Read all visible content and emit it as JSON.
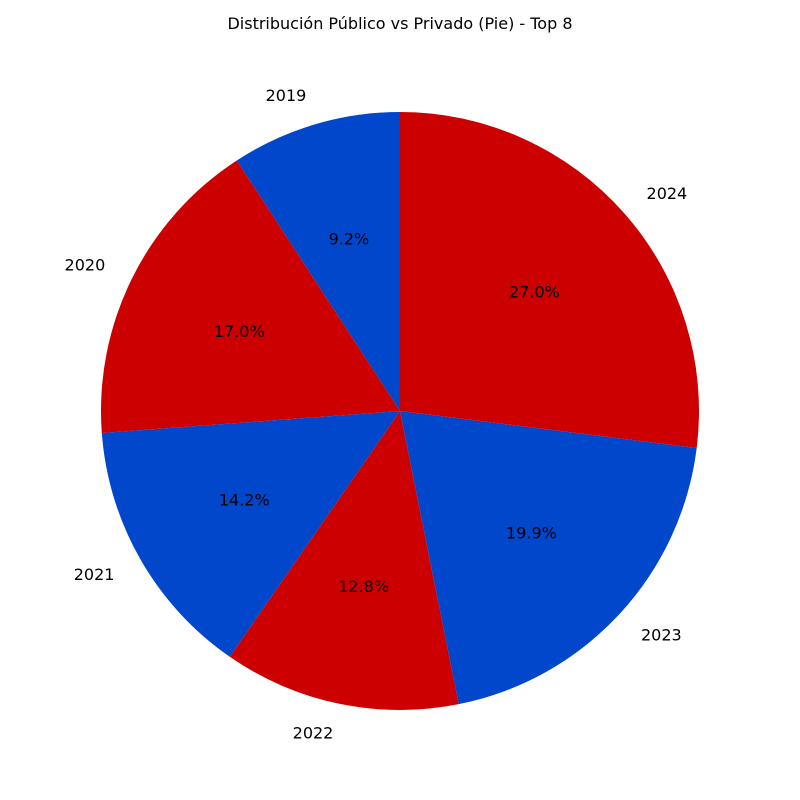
{
  "chart_data": {
    "type": "pie",
    "title": "Distribución Público vs Privado (Pie) - Top 8",
    "categories": [
      "2019",
      "2020",
      "2021",
      "2022",
      "2023",
      "2024"
    ],
    "values": [
      9.2,
      17.0,
      14.2,
      12.8,
      19.9,
      27.0
    ],
    "value_labels": [
      "9.2%",
      "17.0%",
      "14.2%",
      "12.8%",
      "19.9%",
      "27.0%"
    ],
    "colors": [
      "#0047cc",
      "#cc0000",
      "#0047cc",
      "#cc0000",
      "#0047cc",
      "#cc0000"
    ],
    "direction": "counterclockwise",
    "start_angle_deg": 90,
    "legend": "none"
  }
}
